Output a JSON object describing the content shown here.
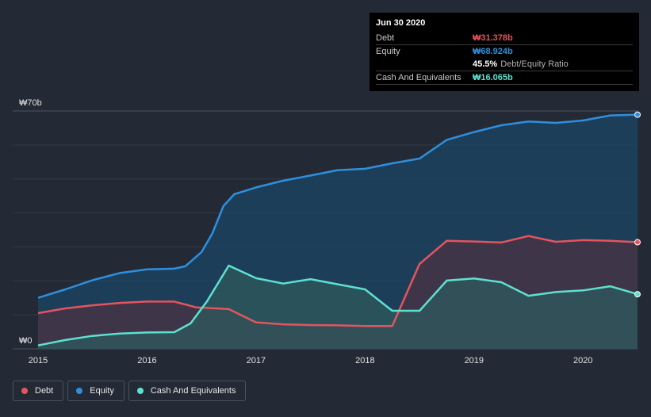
{
  "chart_data": {
    "type": "area",
    "ylim": [
      0,
      70
    ],
    "xlim": [
      2015.0,
      2020.5
    ],
    "y_tick_labels": {
      "top": "₩70b",
      "bottom": "₩0"
    },
    "x_ticks": [
      2015,
      2016,
      2017,
      2018,
      2019,
      2020
    ],
    "x_tick_labels": [
      "2015",
      "2016",
      "2017",
      "2018",
      "2019",
      "2020"
    ],
    "series": [
      {
        "name": "Equity",
        "color": "#2e8fdd",
        "fill": "#1c4666",
        "points": [
          [
            2015.0,
            15
          ],
          [
            2015.25,
            17.5
          ],
          [
            2015.5,
            20.2
          ],
          [
            2015.75,
            22.3
          ],
          [
            2016.0,
            23.4
          ],
          [
            2016.25,
            23.6
          ],
          [
            2016.35,
            24.3
          ],
          [
            2016.5,
            28.5
          ],
          [
            2016.6,
            34
          ],
          [
            2016.7,
            42
          ],
          [
            2016.8,
            45.5
          ],
          [
            2017.0,
            47.5
          ],
          [
            2017.25,
            49.5
          ],
          [
            2017.5,
            51
          ],
          [
            2017.75,
            52.6
          ],
          [
            2018.0,
            53
          ],
          [
            2018.25,
            54.6
          ],
          [
            2018.5,
            56
          ],
          [
            2018.75,
            61.5
          ],
          [
            2019.0,
            63.8
          ],
          [
            2019.25,
            65.8
          ],
          [
            2019.5,
            66.9
          ],
          [
            2019.75,
            66.5
          ],
          [
            2020.0,
            67.2
          ],
          [
            2020.25,
            68.7
          ],
          [
            2020.5,
            68.924
          ]
        ]
      },
      {
        "name": "Debt",
        "color": "#e5545e",
        "fill": "#4a3343",
        "points": [
          [
            2015.0,
            10.5
          ],
          [
            2015.25,
            11.9
          ],
          [
            2015.5,
            12.8
          ],
          [
            2015.75,
            13.5
          ],
          [
            2016.0,
            13.9
          ],
          [
            2016.25,
            13.9
          ],
          [
            2016.45,
            12.2
          ],
          [
            2016.75,
            11.7
          ],
          [
            2017.0,
            7.8
          ],
          [
            2017.25,
            7.2
          ],
          [
            2017.5,
            7.0
          ],
          [
            2017.75,
            6.9
          ],
          [
            2018.0,
            6.7
          ],
          [
            2018.25,
            6.7
          ],
          [
            2018.5,
            25.0
          ],
          [
            2018.75,
            31.8
          ],
          [
            2019.0,
            31.6
          ],
          [
            2019.25,
            31.3
          ],
          [
            2019.5,
            33.2
          ],
          [
            2019.75,
            31.5
          ],
          [
            2020.0,
            32
          ],
          [
            2020.25,
            31.8
          ],
          [
            2020.5,
            31.378
          ]
        ]
      },
      {
        "name": "Cash And Equivalents",
        "color": "#5ee0d0",
        "fill": "#2d5a5c",
        "points": [
          [
            2015.0,
            1.0
          ],
          [
            2015.25,
            2.6
          ],
          [
            2015.5,
            3.8
          ],
          [
            2015.75,
            4.5
          ],
          [
            2016.0,
            4.8
          ],
          [
            2016.25,
            4.9
          ],
          [
            2016.4,
            7.5
          ],
          [
            2016.55,
            14
          ],
          [
            2016.75,
            24.5
          ],
          [
            2017.0,
            20.8
          ],
          [
            2017.25,
            19.2
          ],
          [
            2017.5,
            20.5
          ],
          [
            2017.75,
            19.0
          ],
          [
            2018.0,
            17.5
          ],
          [
            2018.25,
            11.2
          ],
          [
            2018.5,
            11.2
          ],
          [
            2018.75,
            20.1
          ],
          [
            2019.0,
            20.7
          ],
          [
            2019.25,
            19.6
          ],
          [
            2019.5,
            15.6
          ],
          [
            2019.75,
            16.7
          ],
          [
            2020.0,
            17.2
          ],
          [
            2020.25,
            18.4
          ],
          [
            2020.5,
            16.065
          ]
        ]
      }
    ]
  },
  "tooltip": {
    "date": "Jun 30 2020",
    "debt_label": "Debt",
    "debt_value": "₩31.378b",
    "equity_label": "Equity",
    "equity_value": "₩68.924b",
    "ratio_value": "45.5%",
    "ratio_label": "Debt/Equity Ratio",
    "cash_label": "Cash And Equivalents",
    "cash_value": "₩16.065b",
    "colors": {
      "debt": "#e5545e",
      "equity": "#2e8fdd",
      "cash": "#5ee0d0"
    }
  },
  "legend": [
    {
      "label": "Debt",
      "color": "#e5545e"
    },
    {
      "label": "Equity",
      "color": "#2e8fdd"
    },
    {
      "label": "Cash And Equivalents",
      "color": "#5ee0d0"
    }
  ]
}
